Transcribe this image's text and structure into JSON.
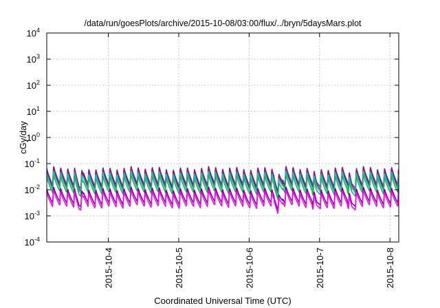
{
  "chart_data": {
    "type": "line",
    "title": "/data/run/goesPlots/archive/2015-10-08/03:00/flux/../bryn/5daysMars.plot",
    "xlabel": "Coordinated Universal Time (UTC)",
    "ylabel": "cGy/day",
    "yscale": "log",
    "ylim": [
      0.0001,
      10000
    ],
    "y_ticks": [
      {
        "base": "10",
        "exp": "4"
      },
      {
        "base": "10",
        "exp": "3"
      },
      {
        "base": "10",
        "exp": "2"
      },
      {
        "base": "10",
        "exp": "1"
      },
      {
        "base": "10",
        "exp": "0"
      },
      {
        "base": "10",
        "exp": "-1"
      },
      {
        "base": "10",
        "exp": "-2"
      },
      {
        "base": "10",
        "exp": "-3"
      },
      {
        "base": "10",
        "exp": "-4"
      }
    ],
    "xlim": [
      "2015-10-03T03:00",
      "2015-10-08T03:00"
    ],
    "x_ticks": [
      "2015-10-4",
      "2015-10-5",
      "2015-10-6",
      "2015-10-7",
      "2015-10-8"
    ],
    "grid": true,
    "pattern": {
      "period_hours": 2.4,
      "description_values": "sawtooth: sharp rise to peak then decay over each cycle",
      "dip_times": [
        "2015-10-03T14:00",
        "2015-10-06T10:00",
        "2015-10-06T23:00",
        "2015-10-07T11:00"
      ]
    },
    "series": [
      {
        "color": "#1a3cff",
        "peak": 0.075,
        "trough": 0.015
      },
      {
        "color": "#e0001a",
        "peak": 0.065,
        "trough": 0.012
      },
      {
        "color": "#00c8c8",
        "peak": 0.05,
        "trough": 0.01
      },
      {
        "color": "#20b060",
        "peak": 0.035,
        "trough": 0.0075
      },
      {
        "color": "#6a0d80",
        "peak": 0.012,
        "trough": 0.003
      },
      {
        "color": "#ff00ff",
        "peak": 0.009,
        "trough": 0.0022
      }
    ]
  }
}
